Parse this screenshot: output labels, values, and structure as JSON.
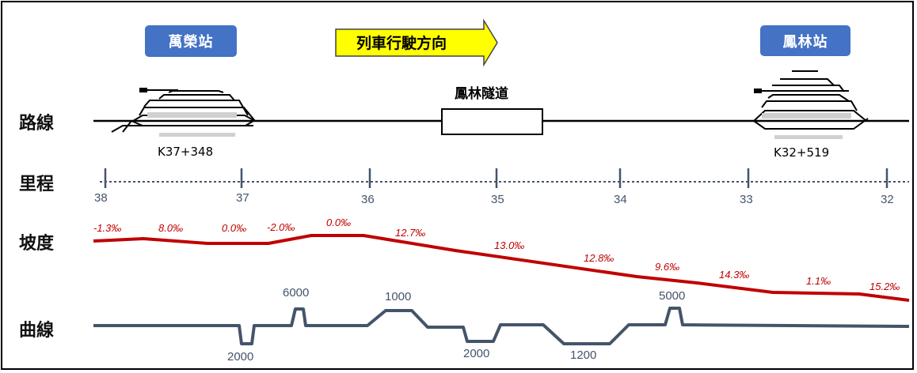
{
  "stations": {
    "left": {
      "name": "萬榮站",
      "mileage": "K37+348"
    },
    "right": {
      "name": "鳳林站",
      "mileage": "K32+519"
    }
  },
  "direction_label": "列車行駛方向",
  "tunnel_label": "鳳林隧道",
  "row_labels": {
    "route": "路線",
    "mileage": "里程",
    "gradient": "坡度",
    "curve": "曲線"
  },
  "mileage_ticks": [
    "38",
    "37",
    "36",
    "35",
    "34",
    "33",
    "32"
  ],
  "gradients": [
    "-1.3‰",
    "8.0‰",
    "0.0‰",
    "-2.0‰",
    "0.0‰",
    "12.7‰",
    "13.0‰",
    "12.8‰",
    "9.6‰",
    "14.3‰",
    "1.1‰",
    "15.2‰"
  ],
  "curve_radii": [
    "2000",
    "6000",
    "1000",
    "2000",
    "1200",
    "5000"
  ],
  "colors": {
    "station_badge": "#4472c4",
    "arrow_fill": "#ffff00",
    "gradient_line": "#c00000",
    "curve_line": "#44546a",
    "mileage_line": "#44546a"
  }
}
